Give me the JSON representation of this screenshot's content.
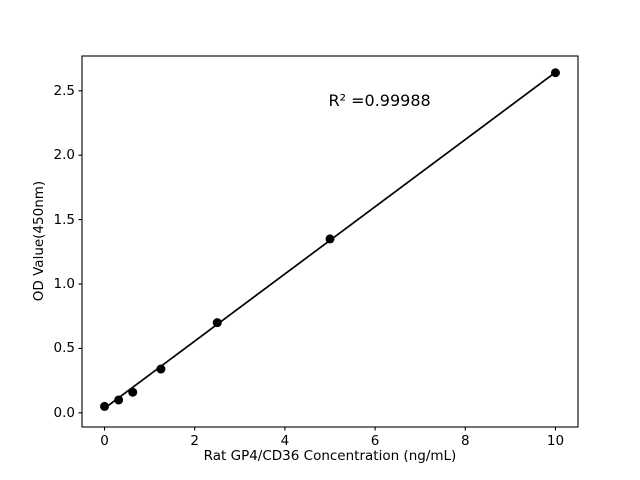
{
  "figure": {
    "background": "#ffffff"
  },
  "chart_data": {
    "type": "scatter",
    "title": "",
    "xlabel": "Rat GP4/CD36 Concentration (ng/mL)",
    "ylabel": "OD Value(450nm)",
    "annotation": "R² =0.99988",
    "annotation_xy": [
      6.1,
      2.42
    ],
    "x": [
      0,
      0.313,
      0.625,
      1.25,
      2.5,
      5,
      10
    ],
    "y": [
      0.05,
      0.1,
      0.16,
      0.34,
      0.7,
      1.35,
      2.64
    ],
    "fit": {
      "slope": 0.2608,
      "intercept": 0.035,
      "r_squared": 0.99988,
      "x_start": 0,
      "x_end": 10
    },
    "xlim": [
      -0.5,
      10.5
    ],
    "ylim": [
      -0.11,
      2.77
    ],
    "xticks": [
      0,
      2,
      4,
      6,
      8,
      10
    ],
    "xtick_labels": [
      "0",
      "2",
      "4",
      "6",
      "8",
      "10"
    ],
    "yticks": [
      0.0,
      0.5,
      1.0,
      1.5,
      2.0,
      2.5
    ],
    "ytick_labels": [
      "0.0",
      "0.5",
      "1.0",
      "1.5",
      "2.0",
      "2.5"
    ],
    "grid": false,
    "legend": null,
    "marker_color": "#000000",
    "line_color": "#000000",
    "axis_color": "#000000"
  }
}
